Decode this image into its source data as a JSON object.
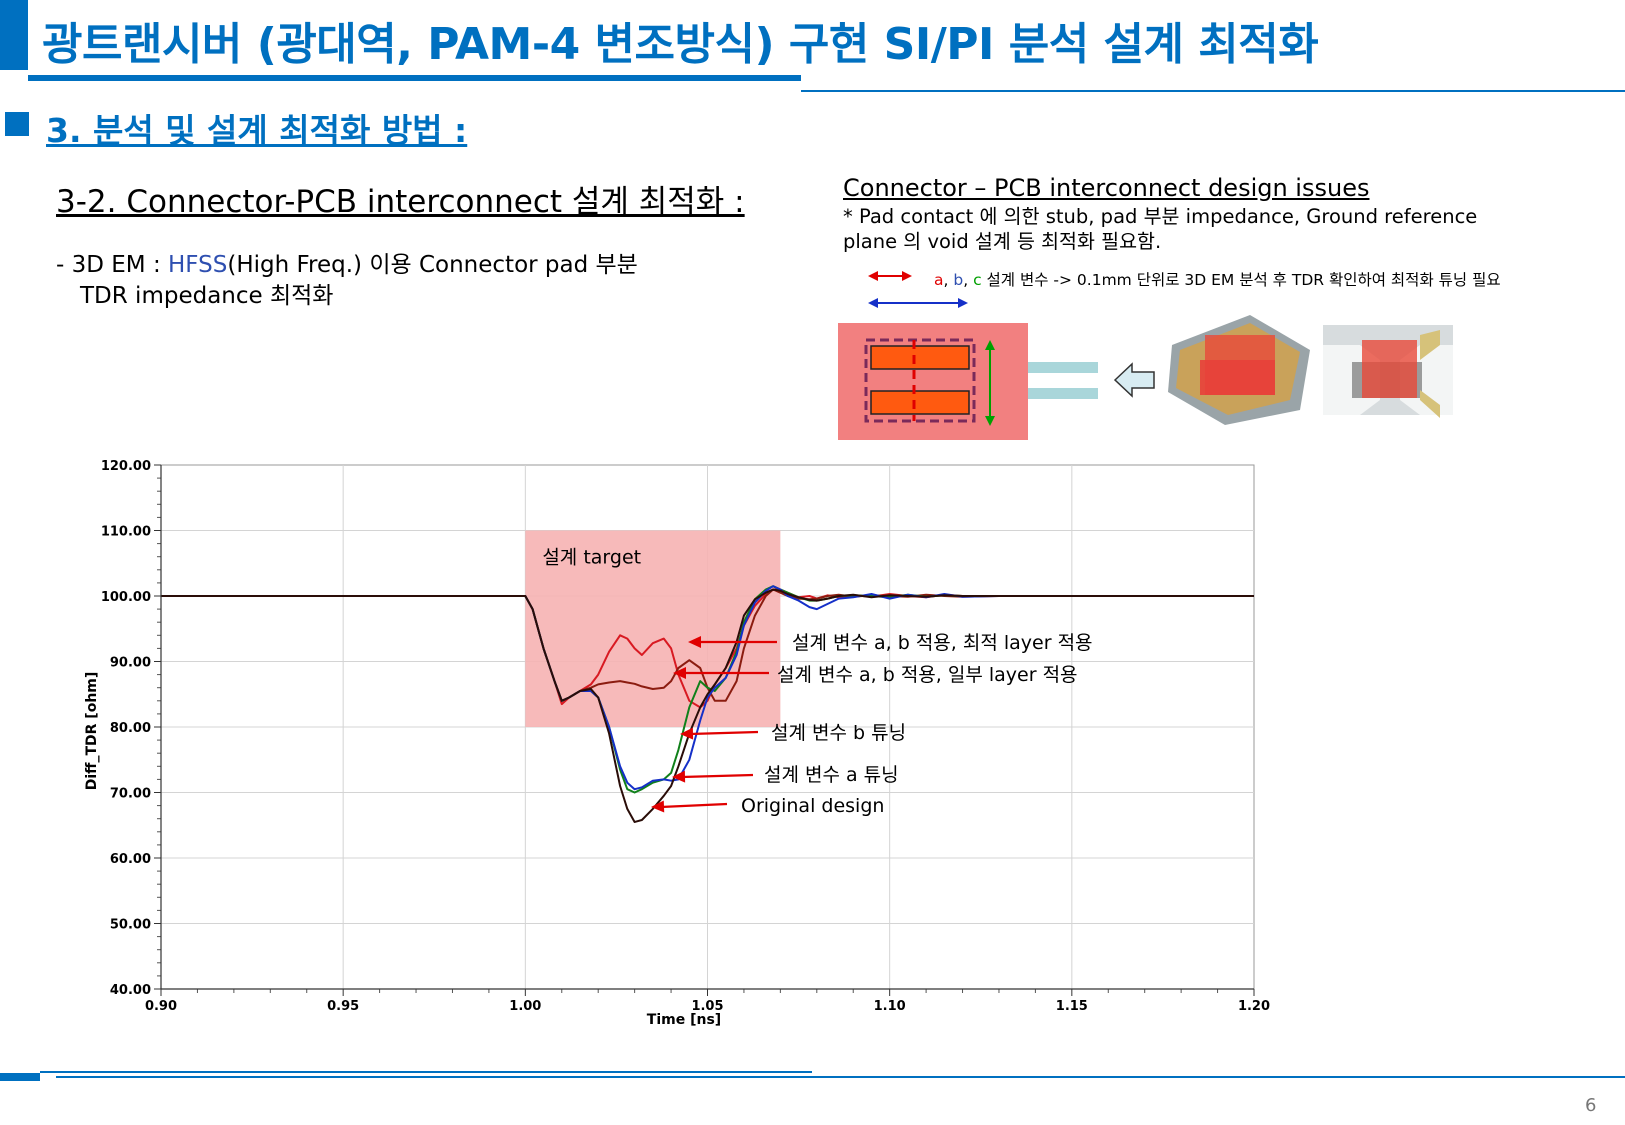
{
  "header": {
    "title": "광트랜시버 (광대역, PAM-4 변조방식) 구현 SI/PI 분석 설계 최적화"
  },
  "section": {
    "heading": "3. 분석 및 설계 최적화 방법 :",
    "subheading": "3-2. Connector-PCB interconnect 설계 최적화 :",
    "desc": {
      "prefix": "- 3D EM : ",
      "tool": "HFSS",
      "line1_rest": "(High Freq.) 이용 Connector pad 부분",
      "line2": "TDR impedance 최적화"
    }
  },
  "issues": {
    "title": "Connector – PCB interconnect design issues",
    "line1": "* Pad contact 에 의한 stub, pad 부분 impedance, Ground reference",
    "line2": "plane 의 void 설계 등 최적화 필요함.",
    "param_a": "a",
    "param_sep1": ", ",
    "param_b": "b",
    "param_sep2": ", ",
    "param_c": "c",
    "param_rest": " 설계 변수 -> 0.1mm 단위로 3D EM 분석 후 TDR 확인하여 최적화 튜닝 필요"
  },
  "colors": {
    "accent": "#0070C0",
    "target_fill": "#F6B3B3",
    "original": "#2A0D08",
    "tune_a": "#1530C8",
    "tune_b": "#10801A",
    "ab_partial": "#8B1C10",
    "ab_optimal": "#D81A22"
  },
  "chart_data": {
    "type": "line",
    "xlabel": "Time [ns]",
    "ylabel": "Diff_TDR [ohm]",
    "xlim": [
      0.9,
      1.2
    ],
    "ylim": [
      40,
      120
    ],
    "x_ticks": [
      "0.90",
      "0.95",
      "1.00",
      "1.05",
      "1.10",
      "1.15",
      "1.20"
    ],
    "y_ticks": [
      "120.00",
      "110.00",
      "100.00",
      "90.00",
      "80.00",
      "70.00",
      "60.00",
      "50.00",
      "40.00"
    ],
    "grid": true,
    "target_region": {
      "label": "설계 target",
      "x": [
        1.0,
        1.07
      ],
      "y": [
        80,
        110
      ]
    },
    "annotations": [
      {
        "text": "설계 변수 a, b 적용, 최적 layer 적용"
      },
      {
        "text": "설계 변수 a, b 적용, 일부 layer 적용"
      },
      {
        "text": "설계 변수 b 튜닝"
      },
      {
        "text": "설계 변수 a 튜닝"
      },
      {
        "text": "Original design"
      }
    ],
    "series": [
      {
        "key": "original",
        "x": [
          0.9,
          1.0,
          1.002,
          1.005,
          1.008,
          1.01,
          1.012,
          1.015,
          1.018,
          1.02,
          1.023,
          1.026,
          1.028,
          1.03,
          1.032,
          1.035,
          1.038,
          1.04,
          1.042,
          1.045,
          1.048,
          1.05,
          1.052,
          1.055,
          1.058,
          1.06,
          1.063,
          1.066,
          1.068,
          1.07,
          1.072,
          1.075,
          1.078,
          1.08,
          1.083,
          1.086,
          1.09,
          1.095,
          1.1,
          1.105,
          1.11,
          1.115,
          1.12,
          1.13,
          1.14,
          1.15,
          1.16,
          1.17,
          1.18,
          1.19,
          1.2
        ],
        "y": [
          100,
          100,
          98,
          92,
          87,
          84,
          84.5,
          85.5,
          85.8,
          84.5,
          79,
          71,
          67.5,
          65.5,
          65.8,
          67.5,
          69.5,
          71,
          74,
          79,
          83,
          85,
          86.5,
          89,
          93,
          97,
          99.5,
          100.5,
          101,
          100.8,
          100.3,
          99.8,
          99.4,
          99.3,
          99.6,
          100,
          100.2,
          99.8,
          100.1,
          100,
          99.9,
          100.1,
          100,
          100,
          100,
          100,
          100,
          100,
          100,
          100,
          100
        ]
      },
      {
        "key": "tune_a",
        "x": [
          0.9,
          1.0,
          1.002,
          1.005,
          1.008,
          1.01,
          1.012,
          1.015,
          1.018,
          1.02,
          1.023,
          1.026,
          1.028,
          1.03,
          1.032,
          1.035,
          1.038,
          1.04,
          1.042,
          1.045,
          1.048,
          1.05,
          1.052,
          1.055,
          1.058,
          1.06,
          1.063,
          1.066,
          1.068,
          1.07,
          1.072,
          1.075,
          1.078,
          1.08,
          1.083,
          1.086,
          1.09,
          1.095,
          1.1,
          1.105,
          1.11,
          1.115,
          1.12,
          1.13,
          1.14,
          1.15,
          1.16,
          1.17,
          1.18,
          1.19,
          1.2
        ],
        "y": [
          100,
          100,
          98,
          92,
          87,
          84,
          84.5,
          85.5,
          85.5,
          84.5,
          80,
          74,
          71.5,
          70.5,
          70.8,
          71.8,
          72,
          71.8,
          72,
          75,
          81,
          84.5,
          86,
          87.5,
          91,
          95.5,
          99,
          100.8,
          101.5,
          101,
          100,
          99.3,
          98.3,
          98,
          98.8,
          99.6,
          99.8,
          100.3,
          99.6,
          100.2,
          99.8,
          100.3,
          99.9,
          100,
          100,
          100,
          100,
          100,
          100,
          100,
          100
        ]
      },
      {
        "key": "tune_b",
        "x": [
          0.9,
          1.0,
          1.002,
          1.005,
          1.008,
          1.01,
          1.012,
          1.015,
          1.018,
          1.02,
          1.023,
          1.026,
          1.028,
          1.03,
          1.032,
          1.035,
          1.038,
          1.04,
          1.042,
          1.045,
          1.048,
          1.05,
          1.052,
          1.055,
          1.058,
          1.06,
          1.063,
          1.066,
          1.068,
          1.07,
          1.072,
          1.075,
          1.078,
          1.08,
          1.083,
          1.086,
          1.09,
          1.095,
          1.1,
          1.105,
          1.11,
          1.115,
          1.12,
          1.13,
          1.14,
          1.15,
          1.16,
          1.17,
          1.18,
          1.19,
          1.2
        ],
        "y": [
          100,
          100,
          98,
          92,
          87,
          84,
          84.5,
          85.5,
          85.5,
          84.5,
          80,
          73.5,
          70.5,
          70,
          70.5,
          71.5,
          72,
          73,
          76.5,
          83,
          87,
          86,
          85.5,
          87.5,
          91.5,
          96,
          99.5,
          101,
          101.5,
          101,
          100.5,
          99.8,
          99.3,
          99.3,
          99.6,
          100,
          100.1,
          100,
          99.8,
          100.2,
          99.9,
          100.1,
          100,
          100,
          100,
          100,
          100,
          100,
          100,
          100,
          100
        ]
      },
      {
        "key": "ab_partial",
        "x": [
          0.9,
          1.0,
          1.002,
          1.005,
          1.008,
          1.01,
          1.012,
          1.015,
          1.018,
          1.02,
          1.023,
          1.026,
          1.028,
          1.03,
          1.032,
          1.035,
          1.038,
          1.04,
          1.042,
          1.045,
          1.048,
          1.05,
          1.052,
          1.055,
          1.058,
          1.06,
          1.063,
          1.066,
          1.068,
          1.07,
          1.072,
          1.075,
          1.078,
          1.08,
          1.083,
          1.086,
          1.09,
          1.095,
          1.1,
          1.105,
          1.11,
          1.115,
          1.12,
          1.13,
          1.14,
          1.15,
          1.16,
          1.17,
          1.18,
          1.19,
          1.2
        ],
        "y": [
          100,
          100,
          98,
          92,
          87,
          84,
          84.5,
          85.5,
          86,
          86.5,
          86.8,
          87,
          86.8,
          86.6,
          86.2,
          85.8,
          86,
          87,
          89,
          90.2,
          89,
          86,
          84,
          84,
          87,
          92,
          97,
          100,
          101,
          100.5,
          100,
          99.6,
          99.5,
          99.6,
          100,
          100.2,
          99.9,
          100.1,
          100,
          99.9,
          100.2,
          100,
          99.9,
          100,
          100,
          100,
          100,
          100,
          100,
          100,
          100
        ]
      },
      {
        "key": "ab_optimal",
        "x": [
          0.9,
          1.0,
          1.002,
          1.005,
          1.008,
          1.01,
          1.012,
          1.015,
          1.018,
          1.02,
          1.023,
          1.026,
          1.028,
          1.03,
          1.032,
          1.035,
          1.038,
          1.04,
          1.042,
          1.045,
          1.048,
          1.05,
          1.052,
          1.055,
          1.058,
          1.06,
          1.063,
          1.066,
          1.068,
          1.07,
          1.072,
          1.075,
          1.078,
          1.08,
          1.083,
          1.086,
          1.09,
          1.095,
          1.1,
          1.105,
          1.11,
          1.115,
          1.12,
          1.13,
          1.14,
          1.15,
          1.16,
          1.17,
          1.18,
          1.19,
          1.2
        ],
        "y": [
          100,
          100,
          98,
          92,
          87,
          83.5,
          84.5,
          85.5,
          86.5,
          88,
          91.5,
          94,
          93.5,
          92,
          91,
          92.8,
          93.5,
          92,
          88,
          84,
          83,
          84,
          86.5,
          89,
          92,
          95.5,
          98.5,
          100.3,
          101,
          101,
          100.5,
          99.8,
          100,
          99.6,
          100.1,
          99.8,
          100.1,
          99.9,
          100.3,
          100,
          99.8,
          100.2,
          100,
          100,
          100,
          100,
          100,
          100,
          100,
          100,
          100
        ]
      }
    ]
  }
}
